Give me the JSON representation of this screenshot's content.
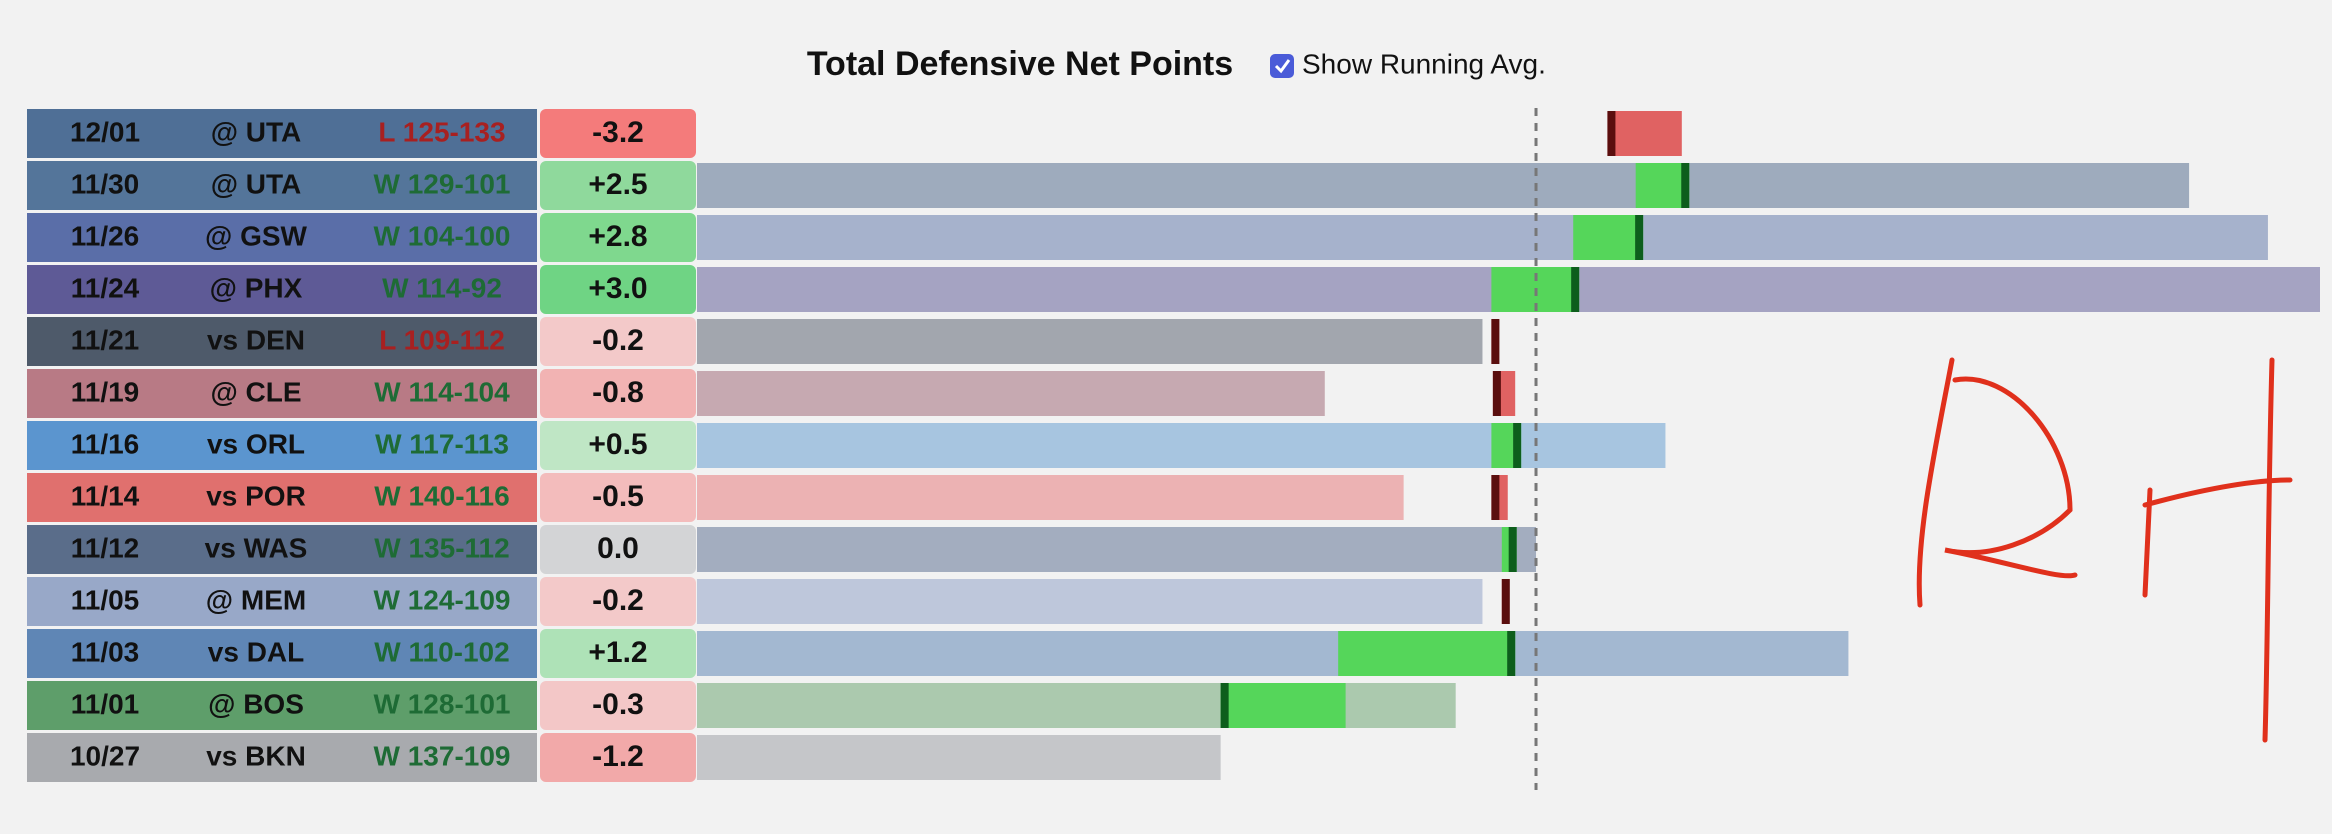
{
  "chart_data": {
    "type": "bar",
    "title": "Total Defensive Net Points",
    "checkbox_label": "Show Running Avg.",
    "checkbox_checked": true,
    "xlim": [
      -5.64,
      5.27
    ],
    "rows": [
      {
        "date": "12/01",
        "matchup": "@ UTA",
        "result": "L 125-133",
        "result_color": "#a82020",
        "team_color": "#4f6f96",
        "net": -3.2,
        "net_label": "-3.2",
        "net_color": "#f47b7b",
        "bar": null,
        "bar_color": "#9eabbd",
        "segment": [
          0.48,
          0.98
        ],
        "segment_color": "#e06262",
        "marker_color": "#5a0e0e"
      },
      {
        "date": "11/30",
        "matchup": "@ UTA",
        "result": "W 129-101",
        "result_color": "#1e6b35",
        "team_color": "#54759a",
        "net": 2.5,
        "net_label": "+2.5",
        "net_color": "#8fd99c",
        "bar": 4.39,
        "bar_color": "#9eabbd",
        "segment": [
          0.67,
          1.03
        ],
        "segment_color": "#55d65a",
        "marker_color": "#0d5e1c"
      },
      {
        "date": "11/26",
        "matchup": "@ GSW",
        "result": "W 104-100",
        "result_color": "#1e6b35",
        "team_color": "#5a6ea8",
        "net": 2.8,
        "net_label": "+2.8",
        "net_color": "#7fd88e",
        "bar": 4.92,
        "bar_color": "#a6b2cc",
        "segment": [
          0.25,
          0.72
        ],
        "segment_color": "#55d65a",
        "marker_color": "#0d5e1c"
      },
      {
        "date": "11/24",
        "matchup": "@ PHX",
        "result": "W 114-92",
        "result_color": "#1e6b35",
        "team_color": "#5e5a96",
        "net": 3.0,
        "net_label": "+3.0",
        "net_color": "#6fd484",
        "bar": 5.27,
        "bar_color": "#a5a3c2",
        "segment": [
          -0.3,
          0.29
        ],
        "segment_color": "#55d65a",
        "marker_color": "#0d5e1c"
      },
      {
        "date": "11/21",
        "matchup": "vs DEN",
        "result": "L 109-112",
        "result_color": "#a82020",
        "team_color": "#4e5a6a",
        "net": -0.2,
        "net_label": "-0.2",
        "net_color": "#f3c9c9",
        "bar": -0.36,
        "bar_color": "#a2a6ae",
        "segment": [
          -0.3,
          -0.25
        ],
        "segment_color": "#e06262",
        "marker_color": "#5a0e0e"
      },
      {
        "date": "11/19",
        "matchup": "@ CLE",
        "result": "W 114-104",
        "result_color": "#1e6b35",
        "team_color": "#b87a85",
        "net": -0.8,
        "net_label": "-0.8",
        "net_color": "#f2b3b3",
        "bar": -1.42,
        "bar_color": "#c6a9b1",
        "segment": [
          -0.29,
          -0.14
        ],
        "segment_color": "#e06262",
        "marker_color": "#5a0e0e"
      },
      {
        "date": "11/16",
        "matchup": "vs ORL",
        "result": "W 117-113",
        "result_color": "#1e6b35",
        "team_color": "#5b95cf",
        "net": 0.5,
        "net_label": "+0.5",
        "net_color": "#bfe6c5",
        "bar": 0.87,
        "bar_color": "#a7c5e0",
        "segment": [
          -0.3,
          -0.1
        ],
        "segment_color": "#55d65a",
        "marker_color": "#0d5e1c"
      },
      {
        "date": "11/14",
        "matchup": "vs POR",
        "result": "W 140-116",
        "result_color": "#1e6b35",
        "team_color": "#e0706e",
        "net": -0.5,
        "net_label": "-0.5",
        "net_color": "#f3bcbc",
        "bar": -0.89,
        "bar_color": "#ecb2b3",
        "segment": [
          -0.3,
          -0.19
        ],
        "segment_color": "#e06262",
        "marker_color": "#5a0e0e"
      },
      {
        "date": "11/12",
        "matchup": "vs WAS",
        "result": "W 135-112",
        "result_color": "#1e6b35",
        "team_color": "#5a6d8a",
        "net": 0.0,
        "net_label": "0.0",
        "net_color": "#d3d4d6",
        "bar": 0.0,
        "bar_color": "#a3adbf",
        "segment": [
          -0.23,
          -0.13
        ],
        "segment_color": "#55d65a",
        "marker_color": "#0d5e1c"
      },
      {
        "date": "11/05",
        "matchup": "@ MEM",
        "result": "W 124-109",
        "result_color": "#1e6b35",
        "team_color": "#98a8c8",
        "net": -0.2,
        "net_label": "-0.2",
        "net_color": "#f3c9c9",
        "bar": -0.36,
        "bar_color": "#bec7db",
        "segment": [
          -0.23,
          -0.18
        ],
        "segment_color": "#e06262",
        "marker_color": "#5a0e0e"
      },
      {
        "date": "11/03",
        "matchup": "vs DAL",
        "result": "W 110-102",
        "result_color": "#1e6b35",
        "team_color": "#5f86b5",
        "net": 1.2,
        "net_label": "+1.2",
        "net_color": "#aee2b7",
        "bar": 2.1,
        "bar_color": "#a3b8d1",
        "segment": [
          -1.33,
          -0.14
        ],
        "segment_color": "#55d65a",
        "marker_color": "#0d5e1c"
      },
      {
        "date": "11/01",
        "matchup": "@ BOS",
        "result": "W 128-101",
        "result_color": "#1e6b35",
        "team_color": "#5e9e6a",
        "net": -0.3,
        "net_label": "-0.3",
        "net_color": "#f3c7c7",
        "bar": -0.54,
        "bar_color": "#abc9ae",
        "segment": [
          -2.12,
          -1.28
        ],
        "segment_color": "#55d65a",
        "marker_color": "#0d5e1c"
      },
      {
        "date": "10/27",
        "matchup": "vs BKN",
        "result": "W 137-109",
        "result_color": "#1e6b35",
        "team_color": "#a8aaae",
        "net": -1.2,
        "net_label": "-1.2",
        "net_color": "#f2a9a9",
        "bar": -2.12,
        "bar_color": "#c5c6c9",
        "segment": null,
        "segment_color": "#55d65a",
        "marker_color": "#0d5e1c"
      }
    ]
  }
}
